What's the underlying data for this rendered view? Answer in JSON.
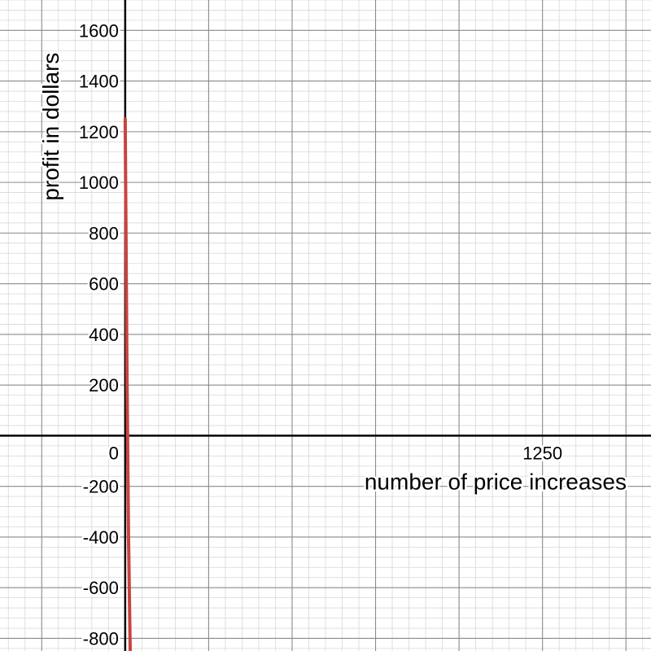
{
  "chart_data": {
    "type": "line",
    "xlabel": "number of price increases",
    "ylabel": "profit in dollars",
    "xlim": [
      -375,
      1575
    ],
    "ylim": [
      -850,
      1720
    ],
    "grid": true,
    "minor_grid": true,
    "x_grid_step": 250,
    "x_minor_grid_step": 50,
    "y_grid_step": 200,
    "y_minor_grid_step": 40,
    "x_tick_labels": [
      {
        "value": 0,
        "text": "0"
      },
      {
        "value": 1250,
        "text": "1250"
      }
    ],
    "y_tick_labels": [
      {
        "value": 1600,
        "text": "1600"
      },
      {
        "value": 1400,
        "text": "1400"
      },
      {
        "value": 1200,
        "text": "1200"
      },
      {
        "value": 1000,
        "text": "1000"
      },
      {
        "value": 800,
        "text": "800"
      },
      {
        "value": 600,
        "text": "600"
      },
      {
        "value": 400,
        "text": "400"
      },
      {
        "value": 200,
        "text": "200"
      },
      {
        "value": -200,
        "text": "-200"
      },
      {
        "value": -400,
        "text": "-400"
      },
      {
        "value": -600,
        "text": "-600"
      },
      {
        "value": -800,
        "text": "-800"
      }
    ],
    "series": [
      {
        "color": "#c74440",
        "points": [
          {
            "x": 0,
            "y": 1250
          },
          {
            "x": 5,
            "y": 300
          },
          {
            "x": 10,
            "y": -400
          },
          {
            "x": 15,
            "y": -850
          }
        ]
      }
    ],
    "colors": {
      "axis": "#000000",
      "major_grid": "#8a8a8a",
      "minor_grid": "#d8d8d8",
      "series": "#c74440"
    }
  }
}
